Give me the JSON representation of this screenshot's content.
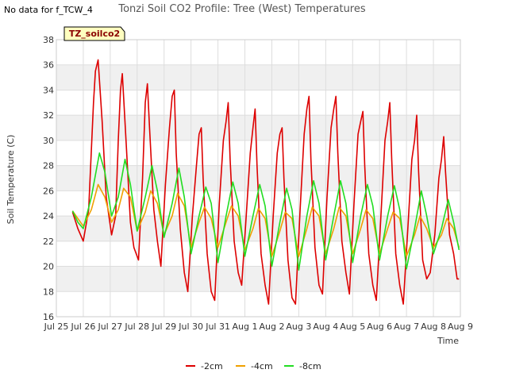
{
  "page": {
    "no_data_note": "No data for f_TCW_4"
  },
  "chart_data": {
    "type": "line",
    "title": "Tonzi Soil CO2 Profile: Tree (West) Temperatures",
    "xlabel": "Time",
    "ylabel": "Soil Temperature (C)",
    "tag": "TZ_soilco2",
    "xlim": [
      0,
      15
    ],
    "ylim": [
      16,
      38
    ],
    "yticks": [
      16,
      18,
      20,
      22,
      24,
      26,
      28,
      30,
      32,
      34,
      36,
      38
    ],
    "xticks": [
      {
        "value": 0,
        "label": "Jul 25"
      },
      {
        "value": 1,
        "label": "Jul 26"
      },
      {
        "value": 2,
        "label": "Jul 27"
      },
      {
        "value": 3,
        "label": "Jul 28"
      },
      {
        "value": 4,
        "label": "Jul 29"
      },
      {
        "value": 5,
        "label": "Jul 30"
      },
      {
        "value": 6,
        "label": "Jul 31"
      },
      {
        "value": 7,
        "label": "Aug 1"
      },
      {
        "value": 8,
        "label": "Aug 2"
      },
      {
        "value": 9,
        "label": "Aug 3"
      },
      {
        "value": 10,
        "label": "Aug 4"
      },
      {
        "value": 11,
        "label": "Aug 5"
      },
      {
        "value": 12,
        "label": "Aug 6"
      },
      {
        "value": 13,
        "label": "Aug 7"
      },
      {
        "value": 14,
        "label": "Aug 8"
      },
      {
        "value": 15,
        "label": "Aug 9"
      }
    ],
    "grid": true,
    "legend_position": "bottom-center",
    "series": [
      {
        "name": "-2cm",
        "color": "#dd0000",
        "x": [
          0.6,
          0.8,
          1.0,
          1.2,
          1.38,
          1.45,
          1.55,
          1.7,
          1.85,
          2.05,
          2.2,
          2.3,
          2.38,
          2.45,
          2.6,
          2.75,
          2.88,
          3.05,
          3.2,
          3.3,
          3.38,
          3.46,
          3.62,
          3.75,
          3.88,
          4.05,
          4.2,
          4.3,
          4.38,
          4.45,
          4.6,
          4.75,
          4.88,
          5.05,
          5.2,
          5.3,
          5.38,
          5.45,
          5.6,
          5.75,
          5.88,
          6.05,
          6.2,
          6.3,
          6.38,
          6.45,
          6.6,
          6.75,
          6.88,
          7.05,
          7.2,
          7.3,
          7.38,
          7.45,
          7.6,
          7.75,
          7.88,
          8.05,
          8.2,
          8.3,
          8.38,
          8.45,
          8.6,
          8.75,
          8.88,
          9.05,
          9.2,
          9.3,
          9.38,
          9.45,
          9.6,
          9.75,
          9.88,
          10.05,
          10.2,
          10.3,
          10.38,
          10.45,
          10.6,
          10.75,
          10.88,
          11.05,
          11.2,
          11.3,
          11.38,
          11.45,
          11.6,
          11.75,
          11.88,
          12.05,
          12.2,
          12.3,
          12.38,
          12.45,
          12.6,
          12.75,
          12.88,
          13.05,
          13.2,
          13.3,
          13.38,
          13.45,
          13.6,
          13.75,
          13.88,
          14.05,
          14.2,
          14.3,
          14.38,
          14.45,
          14.6,
          14.75,
          14.88,
          14.95
        ],
        "y": [
          24.3,
          23.0,
          22.0,
          24.5,
          33.0,
          35.5,
          36.4,
          31.5,
          25.5,
          22.5,
          24.0,
          30.0,
          34.0,
          35.3,
          29.5,
          23.5,
          21.5,
          20.5,
          27.0,
          33.0,
          34.5,
          31.0,
          24.5,
          22.0,
          20.0,
          26.5,
          31.0,
          33.5,
          34.0,
          29.0,
          23.0,
          19.5,
          18.0,
          24.0,
          28.0,
          30.5,
          31.0,
          27.0,
          21.0,
          18.0,
          17.3,
          25.0,
          30.0,
          31.5,
          33.0,
          28.5,
          22.0,
          19.5,
          18.5,
          24.0,
          29.0,
          31.0,
          32.5,
          28.0,
          21.0,
          18.5,
          17.0,
          24.0,
          29.0,
          30.5,
          31.0,
          27.0,
          20.5,
          17.5,
          17.0,
          24.5,
          30.5,
          32.5,
          33.5,
          28.5,
          21.5,
          18.5,
          17.8,
          25.5,
          31.0,
          32.5,
          33.5,
          29.0,
          22.0,
          19.5,
          17.8,
          25.0,
          30.5,
          31.5,
          32.3,
          28.0,
          21.0,
          18.5,
          17.3,
          24.0,
          30.0,
          31.5,
          33.0,
          28.5,
          21.0,
          18.5,
          17.0,
          23.0,
          28.5,
          30.0,
          32.0,
          27.5,
          20.5,
          19.0,
          19.5,
          22.5,
          27.0,
          28.5,
          30.3,
          27.5,
          22.5,
          21.0,
          19.0,
          19.0
        ]
      },
      {
        "name": "-4cm",
        "color": "#f0a000",
        "x": [
          0.6,
          0.8,
          1.0,
          1.3,
          1.55,
          1.8,
          2.05,
          2.3,
          2.5,
          2.75,
          3.0,
          3.3,
          3.5,
          3.75,
          4.0,
          4.3,
          4.5,
          4.75,
          5.0,
          5.3,
          5.5,
          5.75,
          6.0,
          6.3,
          6.5,
          6.75,
          7.0,
          7.3,
          7.5,
          7.75,
          8.0,
          8.3,
          8.5,
          8.75,
          9.0,
          9.3,
          9.5,
          9.75,
          10.0,
          10.3,
          10.5,
          10.75,
          11.0,
          11.3,
          11.5,
          11.75,
          12.0,
          12.3,
          12.5,
          12.75,
          13.0,
          13.3,
          13.5,
          13.75,
          14.0,
          14.3,
          14.5,
          14.75,
          14.95
        ],
        "y": [
          24.4,
          23.8,
          23.2,
          24.5,
          26.5,
          25.5,
          23.5,
          24.5,
          26.2,
          25.5,
          22.8,
          24.3,
          26.0,
          25.0,
          22.5,
          24.0,
          25.8,
          24.8,
          21.5,
          23.5,
          24.7,
          23.8,
          21.5,
          23.5,
          24.8,
          24.0,
          21.3,
          23.0,
          24.6,
          23.8,
          20.8,
          22.8,
          24.3,
          23.8,
          20.8,
          23.0,
          24.7,
          24.0,
          21.0,
          23.0,
          24.7,
          24.0,
          21.0,
          23.0,
          24.5,
          23.8,
          21.0,
          23.0,
          24.3,
          23.8,
          20.8,
          22.5,
          24.0,
          23.0,
          21.5,
          22.5,
          23.8,
          23.0,
          21.5
        ]
      },
      {
        "name": "-8cm",
        "color": "#22dd22",
        "x": [
          0.6,
          0.8,
          1.0,
          1.3,
          1.6,
          1.8,
          2.05,
          2.3,
          2.55,
          2.75,
          3.0,
          3.3,
          3.55,
          3.75,
          4.0,
          4.3,
          4.55,
          4.75,
          5.0,
          5.3,
          5.55,
          5.75,
          6.0,
          6.3,
          6.55,
          6.75,
          7.0,
          7.3,
          7.55,
          7.75,
          8.0,
          8.3,
          8.55,
          8.75,
          9.0,
          9.3,
          9.55,
          9.75,
          10.0,
          10.3,
          10.55,
          10.75,
          11.0,
          11.3,
          11.55,
          11.75,
          12.0,
          12.3,
          12.55,
          12.75,
          13.0,
          13.3,
          13.55,
          13.75,
          14.0,
          14.3,
          14.55,
          14.75,
          14.95
        ],
        "y": [
          24.4,
          23.5,
          23.0,
          25.5,
          29.0,
          27.5,
          24.0,
          25.5,
          28.5,
          26.5,
          22.8,
          25.5,
          28.0,
          26.0,
          22.3,
          25.0,
          27.8,
          25.5,
          21.0,
          24.0,
          26.3,
          25.0,
          20.3,
          24.0,
          26.7,
          25.0,
          20.8,
          24.0,
          26.5,
          24.8,
          20.0,
          23.5,
          26.2,
          24.5,
          19.7,
          24.0,
          26.8,
          25.0,
          20.5,
          24.0,
          26.8,
          25.0,
          20.3,
          24.0,
          26.5,
          24.8,
          20.5,
          24.0,
          26.4,
          24.5,
          19.8,
          23.0,
          26.0,
          24.0,
          21.0,
          23.0,
          25.3,
          23.5,
          21.3
        ]
      }
    ]
  }
}
